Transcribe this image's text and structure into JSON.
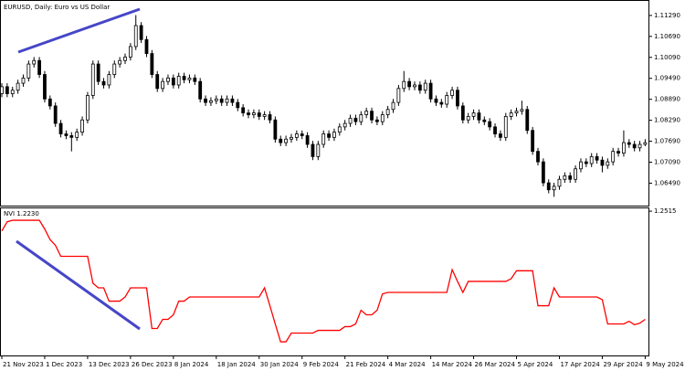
{
  "chart_data": [
    {
      "type": "candlestick",
      "title": "EURUSD, Daily:  Euro vs US Dollar",
      "categories": [
        "21 Nov 2023",
        null,
        null,
        null,
        null,
        null,
        null,
        null,
        "1 Dec 2023",
        null,
        null,
        null,
        null,
        null,
        null,
        null,
        "13 Dec 2023",
        null,
        null,
        null,
        null,
        null,
        null,
        null,
        "26 Dec 2023",
        null,
        null,
        null,
        null,
        null,
        null,
        null,
        "8 Jan 2024",
        null,
        null,
        null,
        null,
        null,
        null,
        null,
        "18 Jan 2024",
        null,
        null,
        null,
        null,
        null,
        null,
        null,
        "30 Jan 2024",
        null,
        null,
        null,
        null,
        null,
        null,
        null,
        "9 Feb 2024",
        null,
        null,
        null,
        null,
        null,
        null,
        null,
        "21 Feb 2024",
        null,
        null,
        null,
        null,
        null,
        null,
        null,
        "4 Mar 2024",
        null,
        null,
        null,
        null,
        null,
        null,
        null,
        "14 Mar 2024",
        null,
        null,
        null,
        null,
        null,
        null,
        null,
        "26 Mar 2024",
        null,
        null,
        null,
        null,
        null,
        null,
        null,
        "5 Apr 2024",
        null,
        null,
        null,
        null,
        null,
        null,
        null,
        "17 Apr 2024",
        null,
        null,
        null,
        null,
        null,
        null,
        null,
        "29 Apr 2024",
        null,
        null,
        null,
        null,
        null,
        null,
        null,
        "9 May 2024"
      ],
      "open": [
        1.0905,
        1.0925,
        1.0905,
        1.0915,
        1.0935,
        1.095,
        1.099,
        1.1,
        1.096,
        1.089,
        1.087,
        1.082,
        1.079,
        1.0785,
        1.078,
        1.0795,
        1.083,
        1.09,
        1.099,
        1.094,
        1.093,
        1.096,
        1.099,
        1.1,
        1.101,
        1.104,
        1.11,
        1.106,
        1.102,
        1.096,
        1.092,
        1.094,
        1.095,
        1.093,
        1.0955,
        1.0945,
        1.095,
        1.094,
        1.089,
        1.088,
        1.0885,
        1.089,
        1.088,
        1.089,
        1.088,
        1.0865,
        1.085,
        1.0845,
        1.085,
        1.084,
        1.0845,
        1.083,
        1.0775,
        1.0765,
        1.0775,
        1.078,
        1.079,
        1.0785,
        1.076,
        1.0725,
        1.076,
        1.079,
        1.078,
        1.0795,
        1.081,
        1.082,
        1.0835,
        1.0825,
        1.0845,
        1.0855,
        1.083,
        1.0825,
        1.0845,
        1.086,
        1.088,
        1.092,
        1.094,
        1.0925,
        1.093,
        1.0915,
        1.0935,
        1.089,
        1.088,
        1.0875,
        1.09,
        1.0915,
        1.087,
        1.083,
        1.084,
        1.085,
        1.083,
        1.0825,
        1.081,
        1.079,
        1.078,
        1.084,
        1.085,
        1.0855,
        1.086,
        1.08,
        1.074,
        1.071,
        1.065,
        1.063,
        1.064,
        1.066,
        1.067,
        1.066,
        1.069,
        1.071,
        1.0705,
        1.0725,
        1.0715,
        1.07,
        1.071,
        1.074,
        1.0735,
        1.0765,
        1.076,
        1.075,
        1.076
      ],
      "high": [
        1.0935,
        1.0935,
        1.0925,
        1.0945,
        1.096,
        1.1,
        1.101,
        1.101,
        1.097,
        1.09,
        1.088,
        1.083,
        1.08,
        1.0795,
        1.0805,
        1.084,
        1.091,
        1.1,
        1.1,
        1.095,
        1.097,
        1.1,
        1.101,
        1.102,
        1.105,
        1.113,
        1.111,
        1.107,
        1.103,
        1.097,
        1.095,
        1.096,
        1.096,
        1.0965,
        1.0965,
        1.096,
        1.096,
        1.095,
        1.09,
        1.0895,
        1.09,
        1.09,
        1.09,
        1.09,
        1.089,
        1.0875,
        1.086,
        1.086,
        1.086,
        1.0855,
        1.0855,
        1.084,
        1.0785,
        1.0785,
        1.079,
        1.08,
        1.08,
        1.0795,
        1.077,
        1.077,
        1.08,
        1.08,
        1.0805,
        1.082,
        1.083,
        1.0845,
        1.0845,
        1.0855,
        1.0865,
        1.0865,
        1.084,
        1.0855,
        1.087,
        1.089,
        1.093,
        1.097,
        1.095,
        1.094,
        1.094,
        1.0945,
        1.0945,
        1.09,
        1.089,
        1.091,
        1.0925,
        1.0925,
        1.088,
        1.085,
        1.086,
        1.086,
        1.084,
        1.0835,
        1.082,
        1.08,
        1.085,
        1.086,
        1.0865,
        1.0885,
        1.087,
        1.081,
        1.075,
        1.072,
        1.066,
        1.065,
        1.067,
        1.068,
        1.068,
        1.07,
        1.072,
        1.072,
        1.0735,
        1.0735,
        1.0725,
        1.072,
        1.075,
        1.075,
        1.08,
        1.0775,
        1.077,
        1.077,
        1.0775
      ],
      "low": [
        1.0895,
        1.0895,
        1.0895,
        1.0905,
        1.0925,
        1.094,
        1.098,
        1.095,
        1.088,
        1.086,
        1.081,
        1.078,
        1.0775,
        1.074,
        1.077,
        1.0785,
        1.082,
        1.089,
        1.093,
        1.092,
        1.092,
        1.095,
        1.098,
        1.099,
        1.1,
        1.103,
        1.105,
        1.101,
        1.095,
        1.091,
        1.091,
        1.093,
        1.092,
        1.092,
        1.0935,
        1.0935,
        1.093,
        1.088,
        1.087,
        1.087,
        1.0875,
        1.087,
        1.087,
        1.087,
        1.0855,
        1.084,
        1.0835,
        1.0835,
        1.083,
        1.083,
        1.082,
        1.0765,
        1.0755,
        1.0755,
        1.0765,
        1.077,
        1.0775,
        1.075,
        1.0715,
        1.0715,
        1.075,
        1.077,
        1.077,
        1.0785,
        1.08,
        1.081,
        1.0815,
        1.0815,
        1.0835,
        1.082,
        1.0815,
        1.0815,
        1.0835,
        1.085,
        1.087,
        1.091,
        1.0915,
        1.0915,
        1.0905,
        1.0905,
        1.088,
        1.087,
        1.0865,
        1.0865,
        1.089,
        1.086,
        1.082,
        1.082,
        1.083,
        1.082,
        1.0815,
        1.08,
        1.078,
        1.077,
        1.077,
        1.083,
        1.084,
        1.0845,
        1.079,
        1.073,
        1.07,
        1.064,
        1.062,
        1.061,
        1.063,
        1.065,
        1.065,
        1.065,
        1.068,
        1.0695,
        1.0695,
        1.0705,
        1.068,
        1.069,
        1.07,
        1.0725,
        1.0725,
        1.075,
        1.074,
        1.074,
        1.0755
      ],
      "close": [
        1.0925,
        1.0905,
        1.0915,
        1.0935,
        1.095,
        1.099,
        1.1,
        1.096,
        1.089,
        1.087,
        1.082,
        1.079,
        1.0785,
        1.078,
        1.0795,
        1.083,
        1.09,
        1.099,
        1.094,
        1.093,
        1.096,
        1.099,
        1.1,
        1.101,
        1.104,
        1.11,
        1.106,
        1.102,
        1.096,
        1.092,
        1.094,
        1.095,
        1.093,
        1.0955,
        1.0945,
        1.095,
        1.094,
        1.089,
        1.088,
        1.0885,
        1.089,
        1.088,
        1.089,
        1.088,
        1.0865,
        1.085,
        1.0845,
        1.085,
        1.084,
        1.0845,
        1.083,
        1.0775,
        1.0765,
        1.0775,
        1.078,
        1.079,
        1.0785,
        1.076,
        1.0725,
        1.076,
        1.079,
        1.078,
        1.0795,
        1.081,
        1.082,
        1.0835,
        1.0825,
        1.0845,
        1.0855,
        1.083,
        1.0825,
        1.0845,
        1.086,
        1.088,
        1.092,
        1.094,
        1.0925,
        1.093,
        1.0915,
        1.0935,
        1.089,
        1.088,
        1.0875,
        1.09,
        1.0915,
        1.087,
        1.083,
        1.084,
        1.085,
        1.083,
        1.0825,
        1.081,
        1.079,
        1.078,
        1.084,
        1.085,
        1.0855,
        1.086,
        1.08,
        1.074,
        1.071,
        1.065,
        1.063,
        1.064,
        1.066,
        1.067,
        1.066,
        1.069,
        1.071,
        1.0705,
        1.0725,
        1.0715,
        1.07,
        1.071,
        1.074,
        1.0735,
        1.0765,
        1.076,
        1.075,
        1.076,
        1.0765
      ],
      "up_color": "#ffffff",
      "down_color": "#000000",
      "outline_color": "#000000",
      "ylim": [
        1.059,
        1.1168
      ],
      "yticks": [
        {
          "value": 1.1129,
          "label": "1.11290"
        },
        {
          "value": 1.1069,
          "label": "1.10690"
        },
        {
          "value": 1.1009,
          "label": "1.10090"
        },
        {
          "value": 1.0949,
          "label": "1.09490"
        },
        {
          "value": 1.0889,
          "label": "1.08890"
        },
        {
          "value": 1.0829,
          "label": "1.08290"
        },
        {
          "value": 1.0769,
          "label": "1.07690"
        },
        {
          "value": 1.0709,
          "label": "1.07090"
        },
        {
          "value": 1.0649,
          "label": "1.06490"
        }
      ]
    },
    {
      "type": "line",
      "title": "NVI 1.2230",
      "color": "#ff0000",
      "values": [
        1.2463,
        1.2487,
        1.2491,
        1.2491,
        1.2491,
        1.2491,
        1.2491,
        1.2491,
        1.2468,
        1.244,
        1.2425,
        1.2396,
        1.2396,
        1.2396,
        1.2396,
        1.2396,
        1.2396,
        1.2325,
        1.2313,
        1.2313,
        1.2278,
        1.2278,
        1.2278,
        1.2289,
        1.2313,
        1.2313,
        1.2313,
        1.2313,
        1.2206,
        1.2206,
        1.223,
        1.223,
        1.2242,
        1.2278,
        1.2278,
        1.2289,
        1.2289,
        1.2289,
        1.2289,
        1.2289,
        1.2289,
        1.2289,
        1.2289,
        1.2289,
        1.2289,
        1.2289,
        1.2289,
        1.2289,
        1.2289,
        1.2313,
        1.2266,
        1.2218,
        1.2171,
        1.2171,
        1.2194,
        1.2194,
        1.2194,
        1.2194,
        1.2194,
        1.2201,
        1.2201,
        1.2201,
        1.2201,
        1.2201,
        1.2211,
        1.2211,
        1.2218,
        1.2254,
        1.2242,
        1.2242,
        1.2254,
        1.2297,
        1.2301,
        1.2301,
        1.2301,
        1.2301,
        1.2301,
        1.2301,
        1.2301,
        1.2301,
        1.2301,
        1.2301,
        1.2301,
        1.2301,
        1.2361,
        1.233,
        1.2301,
        1.233,
        1.233,
        1.233,
        1.233,
        1.233,
        1.233,
        1.233,
        1.233,
        1.2337,
        1.2358,
        1.2358,
        1.2358,
        1.2358,
        1.2266,
        1.2266,
        1.2266,
        1.2313,
        1.2289,
        1.2289,
        1.2289,
        1.2289,
        1.2289,
        1.2289,
        1.2289,
        1.2289,
        1.2282,
        1.2218,
        1.2218,
        1.2218,
        1.2218,
        1.2225,
        1.2216,
        1.222,
        1.223
      ],
      "ylim": [
        1.2135,
        1.252
      ],
      "yticks": [
        1.2515
      ]
    }
  ]
}
